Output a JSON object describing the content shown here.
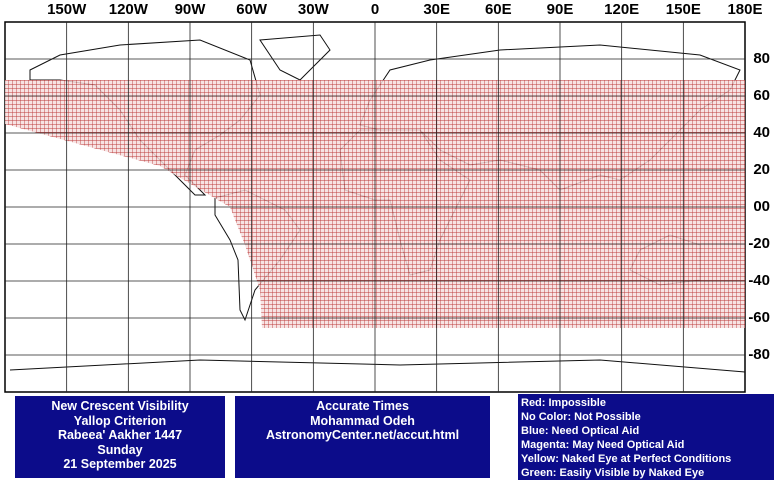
{
  "map": {
    "x_labels": [
      "150W",
      "120W",
      "90W",
      "60W",
      "30W",
      "0",
      "30E",
      "60E",
      "90E",
      "120E",
      "150E",
      "180E"
    ],
    "y_labels": [
      "80",
      "60",
      "40",
      "20",
      "00",
      "-20",
      "-40",
      "-60",
      "-80"
    ]
  },
  "info_boxes": [
    {
      "lines": [
        "New Crescent Visibility",
        "Yallop Criterion",
        "Rabeea' Aakher 1447",
        "Sunday",
        "21 September 2025"
      ]
    },
    {
      "lines": [
        "Accurate Times",
        "Mohammad Odeh",
        "AstronomyCenter.net/accut.html"
      ]
    }
  ],
  "legend": [
    "Red: Impossible",
    "No Color: Not Possible",
    "Blue: Need Optical Aid",
    "Magenta: May Need Optical Aid",
    "Yellow: Naked Eye at Perfect Conditions",
    "Green: Easily Visible by Naked Eye"
  ]
}
